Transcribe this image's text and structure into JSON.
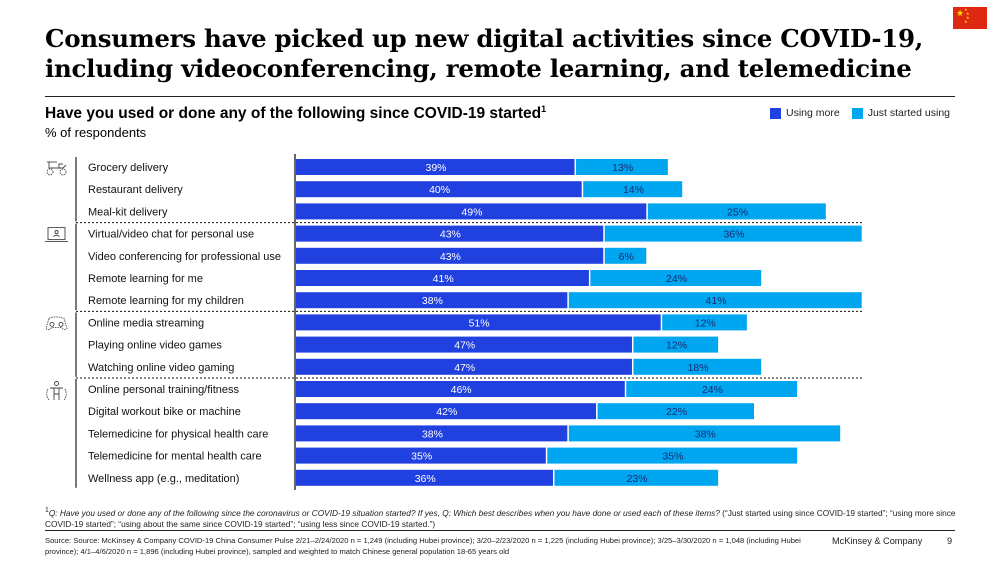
{
  "header": {
    "title_line1": "Consumers have picked up new digital activities since COVID-19,",
    "title_line2": "including videoconferencing, remote learning, and telemedicine",
    "flag_icon": "china-flag-icon"
  },
  "legend": {
    "series1": "Using more",
    "series2": "Just started using"
  },
  "colors": {
    "using_more": "#2040e0",
    "just_started": "#00a6f0",
    "label_dark": "#1a2a70",
    "label_light": "#ffffff"
  },
  "chart_data": {
    "type": "bar",
    "orientation": "horizontal",
    "stacked": true,
    "title": "Have you used or done any of the following since COVID-19 started",
    "title_footnote_marker": "1",
    "ylabel": "% of respondents",
    "xlabel": "",
    "xlim": [
      0,
      80
    ],
    "grid": false,
    "legend_position": "top-right",
    "groups": [
      {
        "icon": "delivery-icon",
        "items": [
          0,
          1,
          2
        ]
      },
      {
        "icon": "laptop-icon",
        "items": [
          3,
          4,
          5,
          6
        ]
      },
      {
        "icon": "gamepad-icon",
        "items": [
          7,
          8,
          9
        ]
      },
      {
        "icon": "fitness-icon",
        "items": [
          10,
          11,
          12,
          13,
          14
        ]
      }
    ],
    "categories": [
      "Grocery delivery",
      "Restaurant delivery",
      "Meal-kit delivery",
      "Virtual/video chat for personal use",
      "Video conferencing for professional use",
      "Remote learning for me",
      "Remote learning for my children",
      "Online media streaming",
      "Playing online video games",
      "Watching online video gaming",
      "Online personal training/fitness",
      "Digital workout bike or machine",
      "Telemedicine for physical health care",
      "Telemedicine for mental health care",
      "Wellness app (e.g., meditation)"
    ],
    "series": [
      {
        "name": "Using more",
        "values": [
          39,
          40,
          49,
          43,
          43,
          41,
          38,
          51,
          47,
          47,
          46,
          42,
          38,
          35,
          36
        ]
      },
      {
        "name": "Just started using",
        "values": [
          13,
          14,
          25,
          36,
          6,
          24,
          41,
          12,
          12,
          18,
          24,
          22,
          38,
          35,
          23
        ]
      }
    ],
    "value_suffix": "%"
  },
  "footer": {
    "footnote_marker": "1",
    "footnote_italic": "Q: Have you used or done any of the following since the coronavirus or COVID-19 situation started? If yes, Q: Which best describes when you have done or used each of these items?",
    "footnote_rest": " (“Just started using since COVID-19 started”; “using more since COVID-19 started”; “using about the same since COVID-19 started”; “using less since COVID-19 started.”)",
    "source": "Source: Source: McKinsey & Company COVID-19 China Consumer Pulse 2/21–2/24/2020 n = 1,249 (including Hubei province); 3/20–2/23/2020 n = 1,225 (including Hubei province); 3/25–3/30/2020 n = 1,048 (including Hubei province); 4/1–4/6/2020 n = 1,896 (including Hubei province), sampled and weighted to match Chinese general population 18-65 years old",
    "brand": "McKinsey & Company",
    "page_number": "9"
  }
}
